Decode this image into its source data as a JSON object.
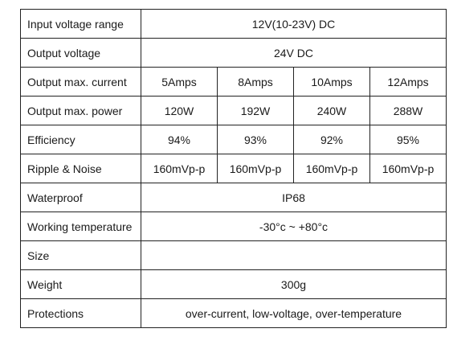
{
  "spec_table": {
    "rows": [
      {
        "label": "Input voltage range",
        "value": "12V(10-23V) DC"
      },
      {
        "label": "Output voltage",
        "value": "24V DC"
      },
      {
        "label": "Output max. current",
        "values": [
          "5Amps",
          "8Amps",
          "10Amps",
          "12Amps"
        ]
      },
      {
        "label": "Output max. power",
        "values": [
          "120W",
          "192W",
          "240W",
          "288W"
        ]
      },
      {
        "label": "Efficiency",
        "values": [
          "94%",
          "93%",
          "92%",
          "95%"
        ]
      },
      {
        "label": "Ripple & Noise",
        "values": [
          "160mVp-p",
          "160mVp-p",
          "160mVp-p",
          "160mVp-p"
        ]
      },
      {
        "label": "Waterproof",
        "value": "IP68"
      },
      {
        "label": "Working temperature",
        "value": "-30°c ~ +80°c"
      },
      {
        "label": "Size",
        "value": ""
      },
      {
        "label": "Weight",
        "value": "300g"
      },
      {
        "label": "Protections",
        "value": "over-current, low-voltage, over-temperature"
      }
    ]
  }
}
